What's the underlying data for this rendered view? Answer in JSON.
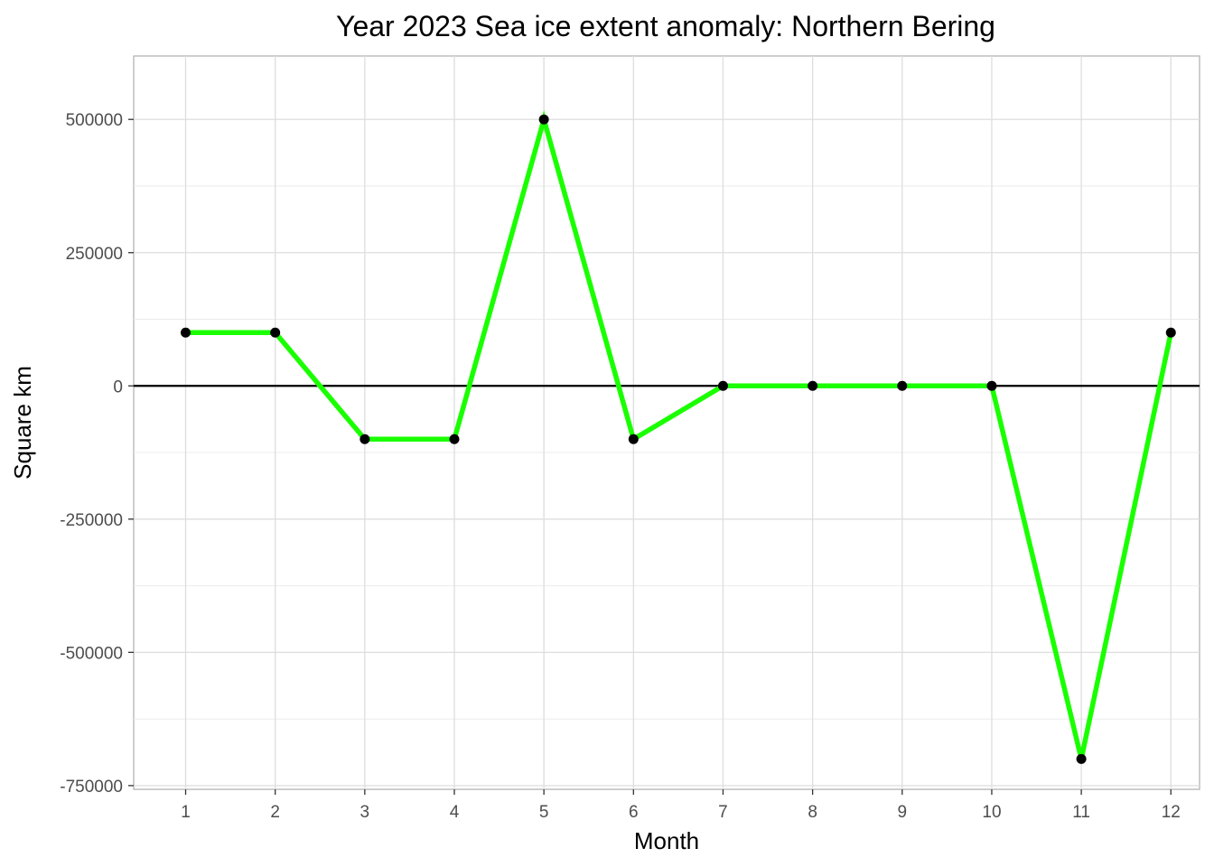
{
  "chart_data": {
    "type": "line",
    "title": "Year 2023 Sea ice extent anomaly: Northern Bering",
    "xlabel": "Month",
    "ylabel": "Square km",
    "x": [
      1,
      2,
      3,
      4,
      5,
      6,
      7,
      8,
      9,
      10,
      11,
      12
    ],
    "series": [
      {
        "values": [
          100000,
          100000,
          -100000,
          -100000,
          500000,
          -100000,
          0,
          0,
          0,
          0,
          -700000,
          100000
        ],
        "color": "#1aff00"
      }
    ],
    "point_color": "#000000",
    "reference_line": 0,
    "xlim": [
      0.42,
      12.32
    ],
    "ylim": [
      -757000,
      619000
    ],
    "y_ticks": [
      500000,
      250000,
      0,
      -250000,
      -500000,
      -750000
    ],
    "y_tick_labels": [
      "500000",
      "250000",
      "0",
      "-250000",
      "-500000",
      "-750000"
    ],
    "x_ticks": [
      1,
      2,
      3,
      4,
      5,
      6,
      7,
      8,
      9,
      10,
      11,
      12
    ],
    "x_tick_labels": [
      "1",
      "2",
      "3",
      "4",
      "5",
      "6",
      "7",
      "8",
      "9",
      "10",
      "11",
      "12"
    ],
    "grid": true,
    "legend": "none"
  }
}
